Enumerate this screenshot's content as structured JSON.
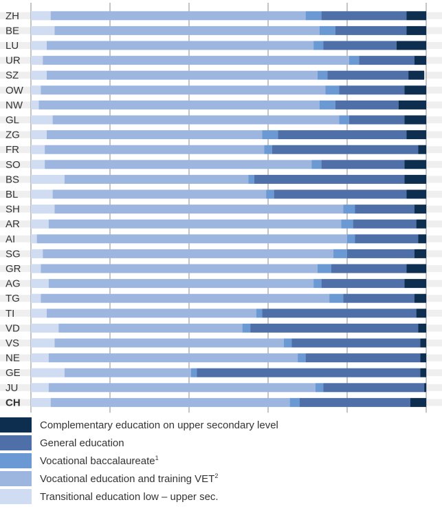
{
  "chart_data": {
    "type": "bar",
    "orientation": "horizontal",
    "stacked": true,
    "categories": [
      "ZH",
      "BE",
      "LU",
      "UR",
      "SZ",
      "OW",
      "NW",
      "GL",
      "ZG",
      "FR",
      "SO",
      "BS",
      "BL",
      "SH",
      "AR",
      "AI",
      "SG",
      "GR",
      "AG",
      "TG",
      "TI",
      "VD",
      "VS",
      "NE",
      "GE",
      "JU",
      "CH"
    ],
    "highlight_category": "CH",
    "xlim": [
      0,
      100
    ],
    "x_ticks": [
      "0%",
      "20%",
      "40%",
      "60%",
      "80%",
      "100%"
    ],
    "grid": true,
    "legend_position": "bottom",
    "series": [
      {
        "name": "Transitional education low – upper sec.",
        "color": "#cfdcf1",
        "values": [
          5,
          6,
          4,
          3,
          4,
          2.5,
          2,
          5.5,
          4,
          3.5,
          3.5,
          8.5,
          5.5,
          6,
          4.5,
          1.5,
          3,
          2.5,
          4.5,
          2.5,
          4,
          7,
          6,
          4.5,
          8.5,
          4.5,
          5
        ]
      },
      {
        "name": "Vocational education and training VET",
        "name_sup": "2",
        "color": "#9db6e0",
        "values": [
          64.5,
          67,
          67.5,
          77.5,
          68.5,
          72,
          71,
          72.5,
          54.5,
          55.5,
          67.5,
          46.5,
          54,
          73,
          74,
          78.5,
          73.5,
          70,
          67,
          73,
          53,
          46.5,
          58,
          63,
          32,
          67.5,
          60.5
        ]
      },
      {
        "name": "Vocational baccalaureate",
        "name_sup": "1",
        "color": "#6b99d3",
        "values": [
          4,
          4,
          2.5,
          2.5,
          2.5,
          3.5,
          4,
          2.5,
          4,
          2,
          2.5,
          1.5,
          2,
          3,
          3,
          2,
          3.5,
          3.5,
          2,
          3.5,
          1.5,
          2,
          2,
          2,
          1.5,
          2,
          2.5
        ]
      },
      {
        "name": "General education",
        "color": "#4f6fa8",
        "values": [
          21.5,
          18,
          18.5,
          14,
          20.5,
          16.5,
          16,
          14,
          32.5,
          37,
          21,
          38,
          33.5,
          15,
          16,
          16,
          17,
          19,
          21,
          18,
          39,
          42.5,
          32.5,
          29,
          56.5,
          25.5,
          28
        ]
      },
      {
        "name": "Complementary education on upper secondary level",
        "color": "#0e2e4f",
        "values": [
          5,
          5,
          7.5,
          3,
          4,
          5.5,
          7,
          5.5,
          5,
          2,
          5.5,
          5.5,
          5,
          3,
          2.5,
          2,
          3,
          5,
          5.5,
          3,
          2.5,
          2,
          1.5,
          1.5,
          1.5,
          0.5,
          4
        ]
      }
    ]
  },
  "legend": {
    "items": [
      {
        "label": "Complementary education on upper secondary level",
        "sup": "",
        "color": "#0e2e4f"
      },
      {
        "label": "General education",
        "sup": "",
        "color": "#4f6fa8"
      },
      {
        "label": "Vocational baccalaureate",
        "sup": "1",
        "color": "#6b99d3"
      },
      {
        "label": "Vocational education and training VET",
        "sup": "2",
        "color": "#9db6e0"
      },
      {
        "label": "Transitional education low – upper sec.",
        "sup": "",
        "color": "#cfdcf1"
      }
    ]
  },
  "colors": {
    "stripe": "#efefef",
    "grid": "#8a8a8a",
    "text": "#333333"
  }
}
